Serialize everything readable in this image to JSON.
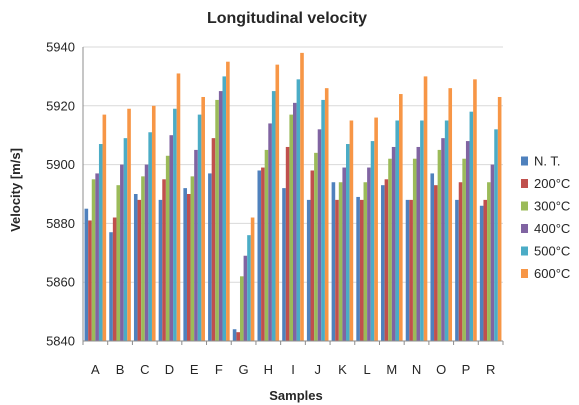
{
  "chart_data": {
    "type": "bar",
    "title": "Longitudinal velocity",
    "xlabel": "Samples",
    "ylabel": "Velocity [m/s]",
    "ylim": [
      5840,
      5940
    ],
    "yticks": [
      5840,
      5860,
      5880,
      5900,
      5920,
      5940
    ],
    "grid": "horizontal",
    "legend_position": "right",
    "categories": [
      "A",
      "B",
      "C",
      "D",
      "E",
      "F",
      "G",
      "H",
      "I",
      "J",
      "K",
      "L",
      "M",
      "N",
      "O",
      "P",
      "R"
    ],
    "series": [
      {
        "name": "N. T.",
        "color": "#4f81bd",
        "values": [
          5885,
          5877,
          5890,
          5888,
          5892,
          5897,
          5844,
          5898,
          5892,
          5888,
          5894,
          5889,
          5893,
          5888,
          5897,
          5888,
          5886
        ]
      },
      {
        "name": "200°C",
        "color": "#c0504d",
        "values": [
          5881,
          5882,
          5888,
          5895,
          5890,
          5909,
          5843,
          5899,
          5906,
          5898,
          5888,
          5888,
          5895,
          5888,
          5893,
          5894,
          5888
        ]
      },
      {
        "name": "300°C",
        "color": "#9bbb59",
        "values": [
          5895,
          5893,
          5896,
          5903,
          5896,
          5922,
          5862,
          5905,
          5917,
          5904,
          5894,
          5894,
          5902,
          5902,
          5905,
          5902,
          5894
        ]
      },
      {
        "name": "400°C",
        "color": "#8064a2",
        "values": [
          5897,
          5900,
          5900,
          5910,
          5905,
          5925,
          5869,
          5914,
          5921,
          5912,
          5899,
          5899,
          5906,
          5906,
          5909,
          5908,
          5900
        ]
      },
      {
        "name": "500°C",
        "color": "#4bacc6",
        "values": [
          5907,
          5909,
          5911,
          5919,
          5917,
          5930,
          5876,
          5925,
          5929,
          5922,
          5907,
          5908,
          5915,
          5915,
          5915,
          5918,
          5912
        ]
      },
      {
        "name": "600°C",
        "color": "#f79646",
        "values": [
          5917,
          5919,
          5920,
          5931,
          5923,
          5935,
          5882,
          5934,
          5938,
          5926,
          5915,
          5916,
          5924,
          5930,
          5926,
          5929,
          5923
        ]
      }
    ]
  }
}
